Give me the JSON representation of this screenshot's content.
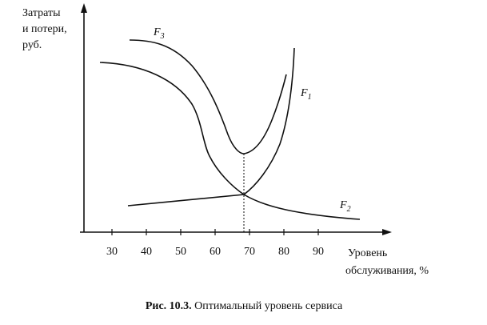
{
  "axes": {
    "y_label": [
      "Затраты",
      "и потери,",
      "руб."
    ],
    "x_label": [
      "Уровень",
      "обслуживания, %"
    ],
    "x_tick_labels": [
      "30",
      "40",
      "50",
      "60",
      "70",
      "80",
      "90"
    ]
  },
  "curves": [
    {
      "letter": "F",
      "index": "3"
    },
    {
      "letter": "F",
      "index": "1"
    },
    {
      "letter": "F",
      "index": "2"
    }
  ],
  "caption": {
    "number": "Рис. 10.3.",
    "text": "Оптимальный уровень сервиса"
  }
}
